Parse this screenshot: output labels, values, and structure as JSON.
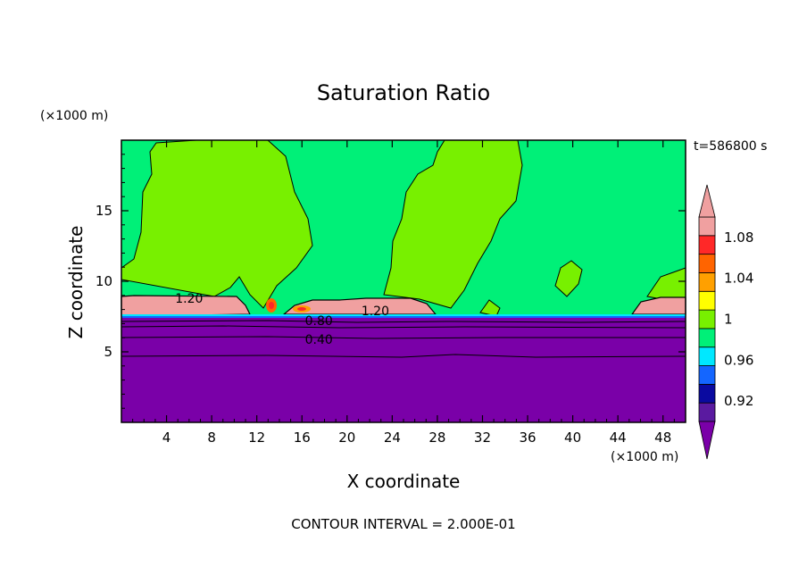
{
  "chart_data": {
    "type": "heatmap",
    "title": "Saturation Ratio",
    "xlabel": "X coordinate",
    "ylabel": "Z coordinate",
    "x_unit": "(×1000 m)",
    "y_unit": "(×1000 m)",
    "time_label": "t=586800 s",
    "footer": "CONTOUR INTERVAL = 2.000E-01",
    "xlim": [
      0,
      50
    ],
    "ylim": [
      0,
      20
    ],
    "x_ticks": [
      "4",
      "8",
      "12",
      "16",
      "20",
      "24",
      "28",
      "32",
      "36",
      "40",
      "44",
      "48"
    ],
    "y_ticks": [
      "5",
      "10",
      "15"
    ],
    "contour_labels": [
      {
        "text": "1.20",
        "x": 6,
        "z": 8.8
      },
      {
        "text": "1.20",
        "x": 22.5,
        "z": 7.9
      },
      {
        "text": "0.80",
        "x": 17.5,
        "z": 7.2
      },
      {
        "text": "0.40",
        "x": 17.5,
        "z": 5.9
      }
    ],
    "colorbar": {
      "labels": [
        "1.08",
        "1.04",
        "1",
        "0.96",
        "0.92"
      ],
      "levels": [
        0.9,
        0.92,
        0.94,
        0.96,
        0.98,
        1.0,
        1.02,
        1.04,
        1.06,
        1.08,
        1.1
      ],
      "colors": [
        "#5a1aa0",
        "#0a0aa0",
        "#1466ff",
        "#00e8ff",
        "#00f078",
        "#78f000",
        "#ffff00",
        "#ffa000",
        "#ff6400",
        "#ff2828",
        "#f0a0a0"
      ],
      "under_color": "#7a00a8",
      "over_color": "#f0a0a0"
    },
    "regions": {
      "upper_background_color": "#00f078",
      "moist_plume_color": "#78f000",
      "supersaturated_color": "#f0a0a0",
      "dry_lower_color": "#7a00a8"
    }
  }
}
